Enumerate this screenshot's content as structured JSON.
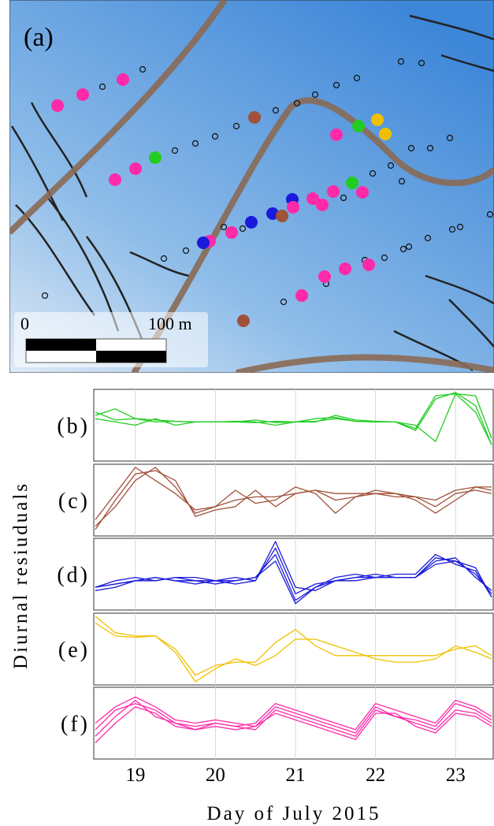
{
  "map": {
    "label": "(a)",
    "scale_start": "0",
    "scale_end": "100 m"
  },
  "figure": {
    "xlabel": "Day of July 2015",
    "ylabel": "Diurnal resiuduals"
  },
  "chart_data": [
    {
      "type": "line",
      "label": "(b)",
      "xlim": [
        18.48,
        23.48
      ],
      "ylim": [
        0,
        10
      ],
      "xticks": [
        19,
        20,
        21,
        22,
        23
      ],
      "grid": true,
      "x": [
        18.5,
        18.75,
        19,
        19.25,
        19.5,
        19.75,
        20,
        20.25,
        20.5,
        20.75,
        21,
        21.25,
        21.5,
        21.75,
        22,
        22.25,
        22.5,
        22.75,
        23,
        23.25,
        23.45
      ],
      "series": [
        {
          "color": "#22cc22",
          "values": [
            6.5,
            7.5,
            6,
            5.5,
            5.6,
            5.5,
            5.5,
            5.5,
            5.4,
            5.6,
            5.5,
            5.5,
            6.5,
            5.8,
            5.6,
            5.5,
            4.5,
            9.5,
            9.8,
            7,
            2
          ]
        },
        {
          "color": "#22cc22",
          "values": [
            6,
            5.5,
            5,
            6,
            5,
            5.5,
            5.5,
            5.6,
            5.5,
            5,
            5.5,
            6,
            6.2,
            5.6,
            5.5,
            5.5,
            5,
            2.5,
            9.8,
            9.5,
            3
          ]
        },
        {
          "color": "#22cc22",
          "values": [
            7,
            5.8,
            6,
            5.8,
            5.6,
            5.5,
            5.5,
            5.5,
            5.8,
            5.4,
            5.5,
            5.6,
            6,
            5.6,
            5.5,
            5.5,
            4.2,
            9,
            10,
            8,
            2
          ]
        }
      ]
    },
    {
      "type": "line",
      "label": "(c)",
      "xlim": [
        18.48,
        23.48
      ],
      "ylim": [
        0,
        10
      ],
      "xticks": [
        19,
        20,
        21,
        22,
        23
      ],
      "grid": true,
      "x": [
        18.5,
        18.75,
        19,
        19.25,
        19.5,
        19.75,
        20,
        20.25,
        20.5,
        20.75,
        21,
        21.25,
        21.5,
        21.75,
        22,
        22.25,
        22.5,
        22.75,
        23,
        23.25,
        23.45
      ],
      "series": [
        {
          "color": "#a0523a",
          "values": [
            1,
            4,
            8,
            10,
            7,
            3,
            4,
            6.5,
            4.5,
            5,
            7,
            6,
            3,
            5.5,
            6,
            6,
            5,
            3,
            5,
            7,
            7
          ]
        },
        {
          "color": "#a0523a",
          "values": [
            0.5,
            5,
            9,
            9.5,
            8,
            2.5,
            3.5,
            4,
            6.5,
            4,
            6,
            6.5,
            5,
            5.5,
            6.5,
            6,
            5.5,
            4,
            6,
            6.5,
            6
          ]
        },
        {
          "color": "#a0523a",
          "values": [
            2,
            6,
            10,
            8,
            6,
            3.5,
            4,
            5,
            5.5,
            5.5,
            6,
            6.5,
            6,
            6,
            6,
            5.5,
            5.5,
            5,
            6.5,
            7,
            6.5
          ]
        }
      ]
    },
    {
      "type": "line",
      "label": "(d)",
      "xlim": [
        18.48,
        23.48
      ],
      "ylim": [
        0,
        10
      ],
      "xticks": [
        19,
        20,
        21,
        22,
        23
      ],
      "grid": true,
      "x": [
        18.5,
        18.75,
        19,
        19.25,
        19.5,
        19.75,
        20,
        20.25,
        20.5,
        20.75,
        21,
        21.25,
        21.5,
        21.75,
        22,
        22.25,
        22.5,
        22.75,
        23,
        23.25,
        23.45
      ],
      "series": [
        {
          "color": "#1a1adb",
          "values": [
            3,
            3.5,
            4,
            4.5,
            4,
            3.5,
            4,
            3.5,
            4,
            9,
            2,
            3.5,
            4,
            4.5,
            4.5,
            4.5,
            4.5,
            7.5,
            7,
            5,
            2
          ]
        },
        {
          "color": "#1a1adb",
          "values": [
            3,
            4,
            4.5,
            4,
            4.5,
            4,
            3.5,
            4,
            4.5,
            8,
            1,
            3,
            4,
            4,
            4.5,
            5,
            5,
            8,
            6.5,
            5.5,
            1.5
          ]
        },
        {
          "color": "#1a1adb",
          "values": [
            2.5,
            3,
            4,
            4.5,
            4,
            4,
            4,
            4.5,
            4,
            10,
            3,
            2.5,
            4,
            4.5,
            5,
            4.5,
            4.5,
            7,
            7.5,
            4.5,
            2.5
          ]
        },
        {
          "color": "#1a1adb",
          "values": [
            3,
            3.5,
            4,
            4,
            4.5,
            4.5,
            4,
            4,
            4.5,
            7,
            0.5,
            3,
            4.5,
            5,
            4.5,
            4.5,
            4.5,
            6.5,
            7,
            6,
            1.5
          ]
        }
      ]
    },
    {
      "type": "line",
      "label": "(e)",
      "xlim": [
        18.48,
        23.48
      ],
      "ylim": [
        0,
        10
      ],
      "xticks": [
        19,
        20,
        21,
        22,
        23
      ],
      "grid": true,
      "x": [
        18.5,
        18.75,
        19,
        19.25,
        19.5,
        19.75,
        20,
        20.25,
        20.5,
        20.75,
        21,
        21.25,
        21.5,
        21.75,
        22,
        22.25,
        22.5,
        22.75,
        23,
        23.25,
        23.45
      ],
      "series": [
        {
          "color": "#f0c000",
          "values": [
            10,
            7.5,
            7,
            7,
            5,
            1,
            2.5,
            3,
            3,
            6,
            8,
            5.5,
            4,
            4,
            4,
            4,
            4,
            4,
            5,
            5.5,
            4
          ]
        },
        {
          "color": "#f0c000",
          "values": [
            9,
            7,
            6.8,
            7,
            4.5,
            0,
            2,
            3.5,
            2.5,
            4,
            6.5,
            6.5,
            5.5,
            4.5,
            3.5,
            3,
            3,
            3.5,
            5.5,
            4.5,
            3.5
          ]
        }
      ]
    },
    {
      "type": "line",
      "label": "(f)",
      "xlim": [
        18.48,
        23.48
      ],
      "ylim": [
        0,
        10
      ],
      "xticks": [
        19,
        20,
        21,
        22,
        23
      ],
      "grid": true,
      "x": [
        18.5,
        18.75,
        19,
        19.25,
        19.5,
        19.75,
        20,
        20.25,
        20.5,
        20.75,
        21,
        21.25,
        21.5,
        21.75,
        22,
        22.25,
        22.5,
        22.75,
        23,
        23.25,
        23.45
      ],
      "series": [
        {
          "color": "#ff2aa8",
          "values": [
            4,
            7,
            8,
            7,
            5,
            4.5,
            5,
            4.5,
            4,
            7,
            6,
            5,
            4,
            3,
            7,
            6,
            5,
            4,
            7,
            6.5,
            5
          ]
        },
        {
          "color": "#ff2aa8",
          "values": [
            3,
            6,
            8.5,
            6,
            5,
            4,
            4.5,
            4,
            4.5,
            7.5,
            6.5,
            5.5,
            4.5,
            3.5,
            7.5,
            6,
            5.5,
            4.5,
            8,
            7,
            5.5
          ]
        },
        {
          "color": "#ff2aa8",
          "values": [
            5,
            7.5,
            9,
            7.5,
            5.5,
            5,
            5.5,
            5,
            4.5,
            6.5,
            5.5,
            4.5,
            3.5,
            2.5,
            6.5,
            6.5,
            4.5,
            3.5,
            6.5,
            6,
            4.5
          ]
        },
        {
          "color": "#ff2aa8",
          "values": [
            2,
            5,
            7.5,
            6.5,
            4.5,
            4,
            5,
            4.5,
            5,
            8,
            7,
            6,
            5,
            4,
            8,
            7,
            6,
            5,
            8.5,
            7.5,
            6
          ]
        }
      ]
    }
  ]
}
